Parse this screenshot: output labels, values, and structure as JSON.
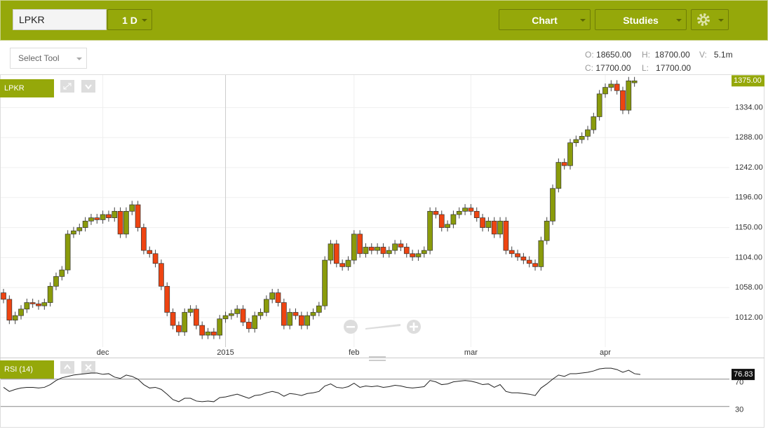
{
  "toolbar": {
    "symbol": "LPKR",
    "interval": "1 D",
    "chart": "Chart",
    "studies": "Studies",
    "tool": "Select Tool"
  },
  "info": {
    "o_label": "O:",
    "o": "18650.00",
    "h_label": "H:",
    "h": "18700.00",
    "v_label": "V:",
    "v": "5.1m",
    "c_label": "C:",
    "c": "17700.00",
    "l_label": "L:",
    "l": "17700.00"
  },
  "chart_data": [
    {
      "type": "candlestick",
      "title": "LPKR",
      "categories": [
        null,
        null,
        null,
        null,
        null,
        null,
        null,
        null,
        null,
        null,
        null,
        null,
        null,
        null,
        null,
        null,
        null,
        "dec",
        null,
        null,
        null,
        null,
        null,
        null,
        null,
        null,
        null,
        null,
        null,
        null,
        null,
        null,
        null,
        null,
        null,
        null,
        null,
        null,
        "2015",
        null,
        null,
        null,
        null,
        null,
        null,
        null,
        null,
        null,
        null,
        null,
        null,
        null,
        null,
        null,
        null,
        null,
        null,
        null,
        null,
        null,
        "feb",
        null,
        null,
        null,
        null,
        null,
        null,
        null,
        null,
        null,
        null,
        null,
        null,
        null,
        null,
        null,
        null,
        null,
        null,
        null,
        "mar",
        null,
        null,
        null,
        null,
        null,
        null,
        null,
        null,
        null,
        null,
        null,
        null,
        null,
        null,
        null,
        null,
        null,
        null,
        null,
        null,
        null,
        null,
        "apr",
        null,
        null,
        null,
        null,
        null
      ],
      "open": [
        1050,
        1040,
        1008,
        1015,
        1025,
        1035,
        1033,
        1030,
        1035,
        1060,
        1075,
        1085,
        1140,
        1145,
        1150,
        1160,
        1165,
        1162,
        1170,
        1165,
        1175,
        1140,
        1175,
        1185,
        1150,
        1115,
        1110,
        1095,
        1060,
        1020,
        1000,
        990,
        1020,
        1025,
        1000,
        985,
        990,
        985,
        1010,
        1015,
        1018,
        1025,
        1005,
        995,
        1015,
        1020,
        1040,
        1050,
        1035,
        1000,
        1020,
        1015,
        1000,
        1015,
        1020,
        1030,
        1100,
        1125,
        1095,
        1090,
        1100,
        1140,
        1110,
        1120,
        1115,
        1120,
        1110,
        1115,
        1125,
        1120,
        1110,
        1105,
        1110,
        1115,
        1175,
        1170,
        1150,
        1155,
        1170,
        1175,
        1180,
        1175,
        1165,
        1150,
        1160,
        1140,
        1160,
        1115,
        1110,
        1105,
        1100,
        1095,
        1090,
        1130,
        1160,
        1210,
        1250,
        1245,
        1280,
        1285,
        1290,
        1300,
        1320,
        1355,
        1365,
        1370,
        1360,
        1330,
        1372
      ],
      "high": [
        1056,
        1046,
        1021,
        1031,
        1041,
        1041,
        1039,
        1041,
        1066,
        1081,
        1091,
        1146,
        1151,
        1156,
        1166,
        1171,
        1171,
        1176,
        1176,
        1181,
        1181,
        1181,
        1191,
        1191,
        1156,
        1121,
        1116,
        1101,
        1066,
        1026,
        1006,
        1026,
        1031,
        1031,
        1006,
        996,
        996,
        1016,
        1021,
        1024,
        1031,
        1031,
        1011,
        1021,
        1026,
        1046,
        1056,
        1056,
        1041,
        1026,
        1026,
        1021,
        1021,
        1026,
        1036,
        1106,
        1131,
        1131,
        1101,
        1106,
        1146,
        1146,
        1126,
        1126,
        1126,
        1126,
        1121,
        1131,
        1131,
        1126,
        1116,
        1116,
        1121,
        1181,
        1181,
        1176,
        1161,
        1176,
        1181,
        1186,
        1186,
        1181,
        1171,
        1166,
        1166,
        1166,
        1166,
        1121,
        1116,
        1111,
        1106,
        1101,
        1136,
        1166,
        1216,
        1256,
        1256,
        1286,
        1291,
        1296,
        1306,
        1326,
        1361,
        1371,
        1376,
        1376,
        1366,
        1381,
        1381
      ],
      "low": [
        1034,
        1002,
        1002,
        1009,
        1019,
        1027,
        1024,
        1024,
        1029,
        1054,
        1069,
        1079,
        1134,
        1139,
        1144,
        1154,
        1156,
        1156,
        1159,
        1159,
        1134,
        1134,
        1169,
        1144,
        1109,
        1104,
        1089,
        1054,
        1014,
        994,
        984,
        984,
        1014,
        994,
        979,
        979,
        979,
        979,
        1004,
        1009,
        1012,
        999,
        989,
        989,
        1009,
        1014,
        1034,
        1029,
        994,
        994,
        1009,
        994,
        994,
        1009,
        1014,
        1024,
        1094,
        1089,
        1084,
        1084,
        1094,
        1104,
        1104,
        1109,
        1109,
        1104,
        1104,
        1109,
        1114,
        1104,
        1099,
        1099,
        1104,
        1109,
        1164,
        1144,
        1144,
        1149,
        1164,
        1169,
        1169,
        1159,
        1144,
        1144,
        1134,
        1134,
        1109,
        1104,
        1099,
        1094,
        1089,
        1084,
        1084,
        1124,
        1154,
        1204,
        1239,
        1239,
        1274,
        1279,
        1284,
        1294,
        1314,
        1349,
        1359,
        1354,
        1324,
        1324,
        1366
      ],
      "close": [
        1040,
        1008,
        1015,
        1025,
        1035,
        1033,
        1030,
        1035,
        1060,
        1075,
        1085,
        1140,
        1145,
        1150,
        1160,
        1165,
        1162,
        1170,
        1165,
        1175,
        1140,
        1175,
        1185,
        1150,
        1115,
        1110,
        1095,
        1060,
        1020,
        1000,
        990,
        1020,
        1025,
        1000,
        985,
        990,
        985,
        1010,
        1015,
        1018,
        1025,
        1005,
        995,
        1015,
        1020,
        1040,
        1050,
        1035,
        1000,
        1020,
        1015,
        1000,
        1015,
        1020,
        1030,
        1100,
        1125,
        1095,
        1090,
        1100,
        1140,
        1110,
        1120,
        1115,
        1120,
        1110,
        1115,
        1125,
        1120,
        1110,
        1105,
        1110,
        1115,
        1175,
        1170,
        1150,
        1155,
        1170,
        1175,
        1180,
        1175,
        1165,
        1150,
        1160,
        1140,
        1160,
        1115,
        1110,
        1105,
        1100,
        1095,
        1090,
        1130,
        1160,
        1210,
        1250,
        1245,
        1280,
        1285,
        1290,
        1300,
        1320,
        1355,
        1365,
        1370,
        1360,
        1330,
        1375,
        1375
      ],
      "last_label": "1375.00",
      "up_color": "#8a9b0b",
      "down_color": "#ee4411",
      "ylim": [
        970,
        1385
      ],
      "yticks": [
        {
          "value": 1012,
          "label": "1012.00"
        },
        {
          "value": 1058,
          "label": "1058.00"
        },
        {
          "value": 1104,
          "label": "1104.00"
        },
        {
          "value": 1150,
          "label": "1150.00"
        },
        {
          "value": 1196,
          "label": "1196.00"
        },
        {
          "value": 1242,
          "label": "1242.00"
        },
        {
          "value": 1288,
          "label": "1288.00"
        },
        {
          "value": 1334,
          "label": "1334.00"
        }
      ],
      "grid": true
    },
    {
      "type": "line",
      "title": "RSI (14)",
      "color": "#222222",
      "values": [
        58,
        52,
        55,
        57,
        58,
        58,
        57,
        58,
        62,
        68,
        72,
        74,
        76,
        77,
        78,
        79,
        79,
        77,
        78,
        73,
        71,
        76,
        74,
        70,
        62,
        57,
        58,
        55,
        48,
        40,
        37,
        42,
        42,
        38,
        37,
        38,
        37,
        43,
        44,
        46,
        48,
        45,
        42,
        46,
        47,
        50,
        52,
        50,
        45,
        49,
        48,
        46,
        49,
        50,
        52,
        60,
        63,
        58,
        57,
        59,
        64,
        58,
        60,
        59,
        60,
        58,
        59,
        61,
        60,
        58,
        57,
        58,
        59,
        68,
        66,
        62,
        63,
        66,
        67,
        68,
        67,
        65,
        62,
        63,
        58,
        62,
        52,
        50,
        50,
        49,
        48,
        46,
        57,
        63,
        70,
        76,
        74,
        78,
        78,
        79,
        80,
        82,
        85,
        86,
        86,
        84,
        80,
        83,
        78,
        76.83
      ],
      "ylim": [
        0,
        100
      ],
      "yticks": [
        70,
        30
      ]
    }
  ]
}
